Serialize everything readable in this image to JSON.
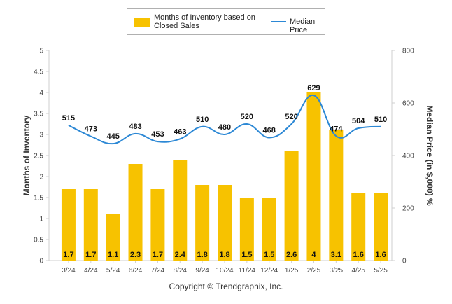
{
  "chart_data": {
    "type": "bar+line",
    "categories": [
      "3/24",
      "4/24",
      "5/24",
      "6/24",
      "7/24",
      "8/24",
      "9/24",
      "10/24",
      "11/24",
      "12/24",
      "1/25",
      "2/25",
      "3/25",
      "4/25",
      "5/25"
    ],
    "series": [
      {
        "name": "Months of Inventory based on Closed Sales",
        "type": "bar",
        "axis": "left",
        "values": [
          1.7,
          1.7,
          1.1,
          2.3,
          1.7,
          2.4,
          1.8,
          1.8,
          1.5,
          1.5,
          2.6,
          4,
          3.1,
          1.6,
          1.6
        ],
        "labels": [
          "1.7",
          "1.7",
          "1.1",
          "2.3",
          "1.7",
          "2.4",
          "1.8",
          "1.8",
          "1.5",
          "1.5",
          "2.6",
          "4",
          "3.1",
          "1.6",
          "1.6"
        ]
      },
      {
        "name": "Median Price",
        "type": "line",
        "axis": "right",
        "values": [
          515,
          473,
          445,
          483,
          453,
          463,
          510,
          480,
          520,
          468,
          520,
          629,
          474,
          504,
          510
        ],
        "labels": [
          "515",
          "473",
          "445",
          "483",
          "453",
          "463",
          "510",
          "480",
          "520",
          "468",
          "520",
          "629",
          "474",
          "504",
          "510"
        ]
      }
    ],
    "ylabel_left": "Months of Inventory",
    "ylabel_right": "Median Price (in $,000) %",
    "ylim_left": [
      0,
      5
    ],
    "ylim_right": [
      0,
      800
    ],
    "yticks_left": [
      "0",
      "0.5",
      "1",
      "1.5",
      "2",
      "2.5",
      "3",
      "3.5",
      "4",
      "4.5",
      "5"
    ],
    "yticks_right": [
      "0",
      "200",
      "400",
      "600",
      "800"
    ],
    "grid": false,
    "legend": "top-center",
    "colors": {
      "bar": "#f7c200",
      "line": "#2c88d5"
    }
  },
  "legend": {
    "bars_label": "Months of Inventory based on Closed Sales",
    "line_label": "Median Price"
  },
  "footer": {
    "copyright": "Copyright © Trendgraphix, Inc."
  }
}
